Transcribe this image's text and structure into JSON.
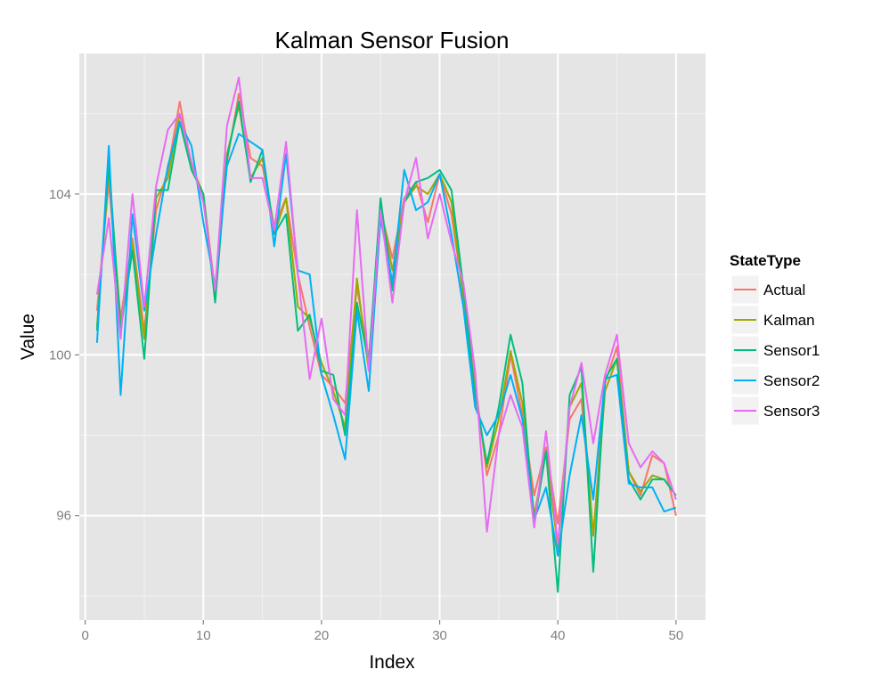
{
  "chart_data": {
    "type": "line",
    "title": "Kalman Sensor Fusion",
    "xlabel": "Index",
    "ylabel": "Value",
    "xlim": [
      -0.5,
      52.5
    ],
    "ylim": [
      93.4,
      107.5
    ],
    "x_ticks": [
      0,
      10,
      20,
      30,
      40,
      50
    ],
    "y_ticks": [
      96,
      100,
      104
    ],
    "grid": true,
    "legend_title": "StateType",
    "legend_position": "right",
    "x": [
      1,
      2,
      3,
      4,
      5,
      6,
      7,
      8,
      9,
      10,
      11,
      12,
      13,
      14,
      15,
      16,
      17,
      18,
      19,
      20,
      21,
      22,
      23,
      24,
      25,
      26,
      27,
      28,
      29,
      30,
      31,
      32,
      33,
      34,
      35,
      36,
      37,
      38,
      39,
      40,
      41,
      42,
      43,
      44,
      45,
      46,
      47,
      48,
      49,
      50
    ],
    "series": [
      {
        "name": "Actual",
        "color": "#F8766D",
        "values": [
          101.1,
          104.3,
          100.9,
          102.9,
          100.6,
          103.6,
          104.6,
          106.3,
          104.7,
          104.0,
          101.6,
          104.8,
          106.5,
          104.9,
          104.7,
          103.2,
          103.9,
          102.0,
          100.7,
          99.5,
          99.2,
          98.8,
          101.7,
          99.9,
          103.6,
          102.4,
          103.9,
          104.3,
          103.3,
          104.5,
          103.5,
          101.5,
          99.3,
          97.0,
          98.0,
          100.0,
          98.5,
          96.5,
          97.7,
          95.8,
          98.4,
          98.9,
          95.5,
          99.3,
          100.2,
          97.1,
          96.5,
          97.5,
          97.3,
          96.0
        ]
      },
      {
        "name": "Kalman",
        "color": "#A3A500",
        "values": [
          100.7,
          104.6,
          100.8,
          102.8,
          100.4,
          103.9,
          104.4,
          106.0,
          104.7,
          104.0,
          101.5,
          105.0,
          106.2,
          104.4,
          104.9,
          103.0,
          103.9,
          101.2,
          100.9,
          99.8,
          99.1,
          98.2,
          101.9,
          99.6,
          103.7,
          102.1,
          103.8,
          104.2,
          104.0,
          104.5,
          103.8,
          101.4,
          99.1,
          97.2,
          98.4,
          100.1,
          98.8,
          96.0,
          97.6,
          95.2,
          98.7,
          99.3,
          95.5,
          99.1,
          99.9,
          97.1,
          96.6,
          97.0,
          96.9,
          96.5
        ]
      },
      {
        "name": "Sensor1",
        "color": "#00BF7D",
        "values": [
          100.6,
          104.8,
          100.6,
          102.6,
          99.9,
          104.1,
          104.1,
          105.8,
          104.6,
          104.0,
          101.3,
          104.9,
          106.3,
          104.3,
          105.1,
          103.0,
          103.5,
          100.6,
          101.0,
          99.6,
          99.5,
          98.0,
          101.3,
          99.8,
          103.9,
          101.6,
          103.8,
          104.3,
          104.4,
          104.6,
          104.1,
          101.7,
          99.0,
          97.3,
          98.7,
          100.5,
          99.3,
          95.8,
          97.6,
          94.1,
          99.0,
          99.7,
          94.6,
          99.4,
          99.9,
          96.9,
          96.4,
          96.9,
          96.9,
          96.5
        ]
      },
      {
        "name": "Sensor2",
        "color": "#00B0F6",
        "values": [
          100.3,
          105.2,
          99.0,
          103.5,
          101.1,
          103.0,
          104.7,
          105.8,
          105.2,
          103.3,
          101.7,
          104.7,
          105.5,
          105.3,
          105.1,
          102.7,
          105.0,
          102.1,
          102.0,
          99.5,
          98.5,
          97.4,
          101.1,
          99.1,
          103.4,
          101.8,
          104.6,
          103.6,
          103.8,
          104.5,
          103.0,
          101.2,
          98.7,
          98.0,
          98.5,
          99.5,
          98.4,
          95.9,
          96.7,
          95.0,
          97.0,
          98.5,
          96.4,
          99.4,
          99.5,
          96.8,
          96.7,
          96.7,
          96.1,
          96.2
        ]
      },
      {
        "name": "Sensor3",
        "color": "#E76BF3",
        "values": [
          101.5,
          103.4,
          100.4,
          104.0,
          101.2,
          104.2,
          105.6,
          106.0,
          104.8,
          103.8,
          101.6,
          105.7,
          106.9,
          104.4,
          104.4,
          103.1,
          105.3,
          102.0,
          99.4,
          100.9,
          98.9,
          98.5,
          103.6,
          99.6,
          103.6,
          101.3,
          103.8,
          104.9,
          102.9,
          104.0,
          102.8,
          101.8,
          99.6,
          95.6,
          98.0,
          99.0,
          98.2,
          95.7,
          98.1,
          95.3,
          98.7,
          99.8,
          97.8,
          99.5,
          100.5,
          97.8,
          97.2,
          97.6,
          97.3,
          96.4
        ]
      }
    ]
  }
}
